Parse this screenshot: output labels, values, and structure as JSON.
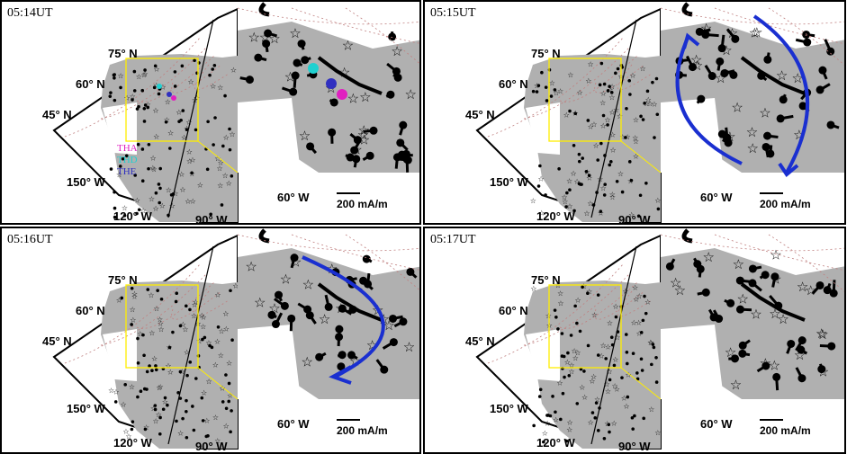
{
  "panels": [
    {
      "time": "05:14UT",
      "arrow": "none",
      "satellites": true
    },
    {
      "time": "05:15UT",
      "arrow": "ring",
      "satellites": false
    },
    {
      "time": "05:16UT",
      "arrow": "arc",
      "satellites": false
    },
    {
      "time": "05:17UT",
      "arrow": "none",
      "satellites": false
    }
  ],
  "labels": {
    "lat75": "75° N",
    "lat60": "60° N",
    "lat45": "45° N",
    "lon150": "150° W",
    "lon120": "120° W",
    "lon90": "90° W",
    "lon60": "60° W",
    "scale": "200 mA/m"
  },
  "satellites": [
    {
      "name": "THA",
      "color": "#e020c0"
    },
    {
      "name": "THD",
      "color": "#20d0d0"
    },
    {
      "name": "THE",
      "color": "#3030c0"
    }
  ],
  "colors": {
    "land": "#b0b0b0",
    "zoom_box": "#ffee00",
    "arrow": "#1a2fd0",
    "grid": "#c08080"
  }
}
